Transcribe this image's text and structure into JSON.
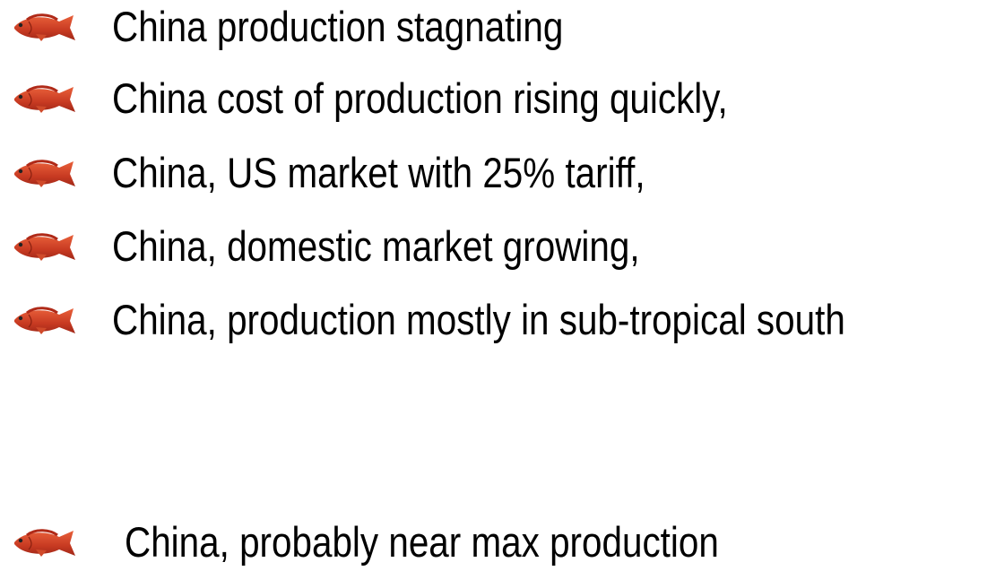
{
  "items": [
    "China production stagnating",
    "China cost of production rising quickly,",
    "China, US market with 25% tariff,",
    "China, domestic market growing,",
    "China, production mostly in sub-tropical south",
    "China, probably near max production"
  ]
}
